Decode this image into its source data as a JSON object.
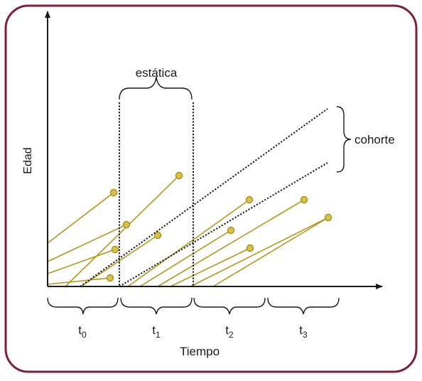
{
  "colors": {
    "frame": "#7b1f3a",
    "line": "#b3961b",
    "dot_fill": "#d8c043",
    "dot_stroke": "#a08618",
    "ink": "#1a1a1a"
  },
  "labels": {
    "y_axis": "Edad",
    "x_axis": "Tiempo",
    "static_label": "estática",
    "cohort_label": "cohorte",
    "periods": [
      {
        "base": "t",
        "sub": "0"
      },
      {
        "base": "t",
        "sub": "1"
      },
      {
        "base": "t",
        "sub": "2"
      },
      {
        "base": "t",
        "sub": "3"
      }
    ]
  }
}
